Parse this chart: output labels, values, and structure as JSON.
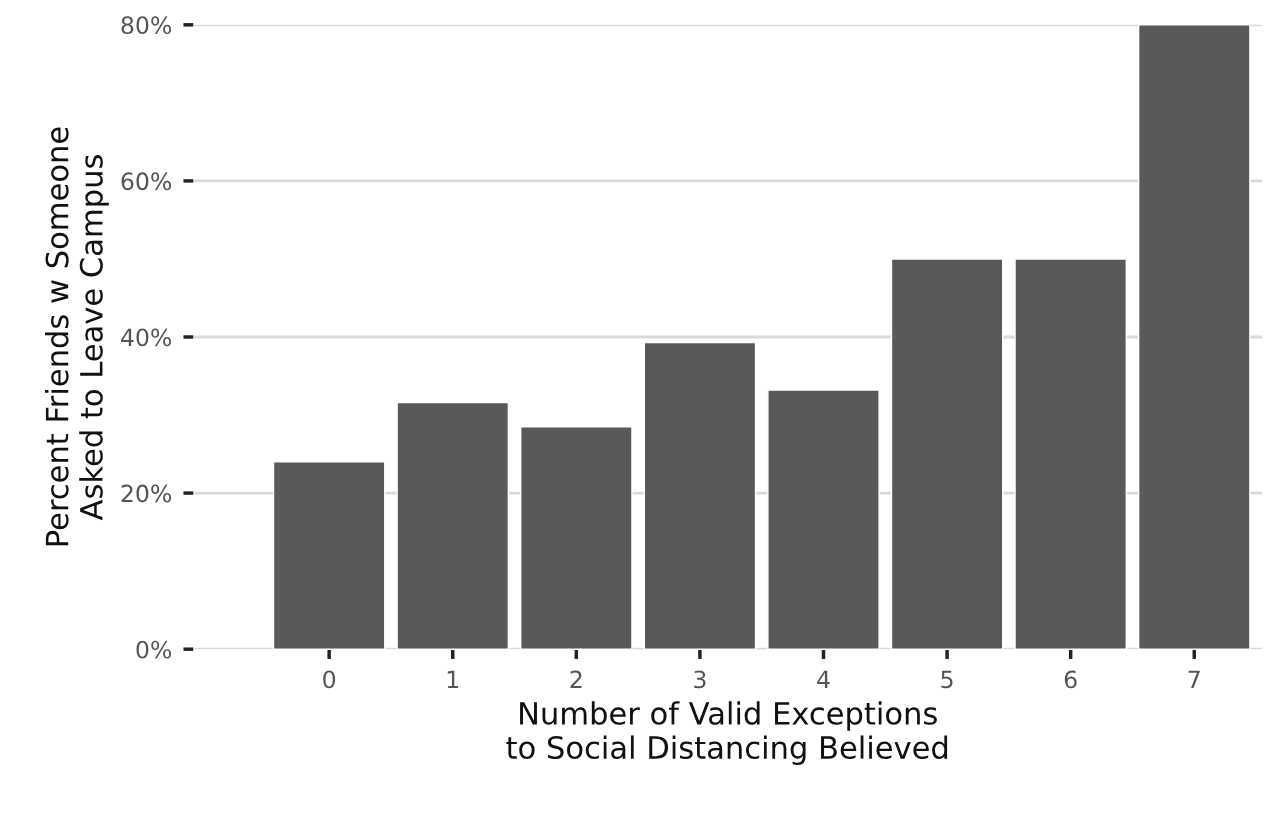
{
  "chart_data": {
    "type": "bar",
    "categories": [
      "0",
      "1",
      "2",
      "3",
      "4",
      "5",
      "6",
      "7"
    ],
    "values": [
      24.0,
      31.6,
      28.5,
      39.3,
      33.2,
      50,
      50,
      80
    ],
    "color": "#595959",
    "xlabel": "Number of Valid Exceptions\nto Social Distancing Believed",
    "ylabel": "Percent Friends w Someone\nAsked to Leave Campus",
    "ylim": [
      0,
      80
    ],
    "yticks": [
      {
        "value": 0,
        "label": "0%"
      },
      {
        "value": 20,
        "label": "20%"
      },
      {
        "value": 40,
        "label": "40%"
      },
      {
        "value": 60,
        "label": "60%"
      },
      {
        "value": 80,
        "label": "80%"
      }
    ],
    "grid": "y"
  }
}
